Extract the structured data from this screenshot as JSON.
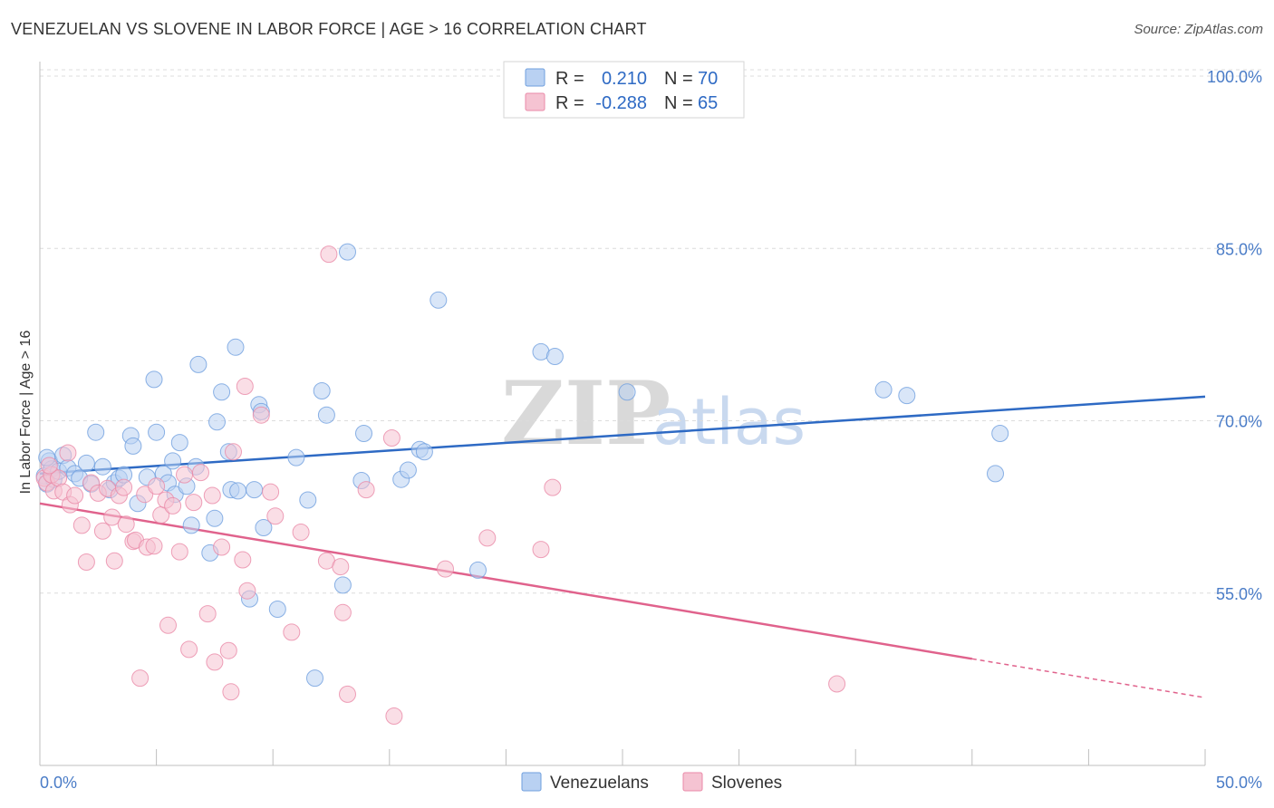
{
  "header": {
    "title": "VENEZUELAN VS SLOVENE IN LABOR FORCE | AGE > 16 CORRELATION CHART",
    "source": "Source: ZipAtlas.com"
  },
  "watermark": {
    "zip": "ZIP",
    "atlas": "atlas"
  },
  "colors": {
    "blue": "#6f9fde",
    "blue_fill": "#b9d1f2",
    "blue_line": "#2e6ac4",
    "pink": "#ea8aa8",
    "pink_fill": "#f5c3d2",
    "pink_line": "#e0628c"
  },
  "legend": {
    "row1": {
      "r_label": "R =",
      "r_value": "0.210",
      "n_label": "N =",
      "n_value": "70"
    },
    "row2": {
      "r_label": "R =",
      "r_value": "-0.288",
      "n_label": "N =",
      "n_value": "65"
    }
  },
  "bottom_legend": {
    "series1": "Venezuelans",
    "series2": "Slovenes"
  },
  "chart_data": {
    "type": "scatter",
    "title": "VENEZUELAN VS SLOVENE IN LABOR FORCE | AGE > 16 CORRELATION CHART",
    "xlabel": "",
    "ylabel": "In Labor Force | Age > 16",
    "xlim": [
      0,
      50
    ],
    "ylim": [
      40,
      101.5
    ],
    "x_tick_labels": [
      "0.0%",
      "50.0%"
    ],
    "y_ticks": [
      55,
      70,
      85,
      100
    ],
    "y_tick_labels": [
      "55.0%",
      "70.0%",
      "85.0%",
      "100.0%"
    ],
    "grid": true,
    "series": [
      {
        "name": "Venezuelans",
        "r": 0.21,
        "n": 70,
        "trend": {
          "x0": 0,
          "y0": 65.4,
          "x1": 50,
          "y1": 72.1,
          "dashed_from": null
        },
        "points": [
          [
            0.2,
            65.2
          ],
          [
            0.3,
            64.5
          ],
          [
            0.4,
            66.5
          ],
          [
            0.5,
            65.8
          ],
          [
            0.6,
            64.9
          ],
          [
            0.8,
            65.6
          ],
          [
            1.0,
            67.0
          ],
          [
            1.2,
            65.9
          ],
          [
            1.5,
            65.4
          ],
          [
            1.7,
            65.0
          ],
          [
            2.0,
            66.3
          ],
          [
            2.2,
            64.5
          ],
          [
            2.4,
            69.0
          ],
          [
            2.7,
            66.0
          ],
          [
            3.0,
            64.0
          ],
          [
            3.2,
            64.6
          ],
          [
            3.4,
            65.0
          ],
          [
            3.6,
            65.3
          ],
          [
            3.9,
            68.7
          ],
          [
            4.0,
            67.8
          ],
          [
            4.2,
            62.8
          ],
          [
            4.6,
            65.1
          ],
          [
            4.9,
            73.6
          ],
          [
            5.0,
            69.0
          ],
          [
            5.3,
            65.4
          ],
          [
            5.5,
            64.6
          ],
          [
            5.7,
            66.5
          ],
          [
            5.8,
            63.6
          ],
          [
            6.0,
            68.1
          ],
          [
            6.3,
            64.3
          ],
          [
            6.5,
            60.9
          ],
          [
            6.7,
            66.0
          ],
          [
            6.8,
            74.9
          ],
          [
            7.3,
            58.5
          ],
          [
            7.5,
            61.5
          ],
          [
            7.6,
            69.9
          ],
          [
            7.8,
            72.5
          ],
          [
            8.1,
            67.3
          ],
          [
            8.2,
            64.0
          ],
          [
            8.4,
            76.4
          ],
          [
            8.5,
            63.9
          ],
          [
            9.0,
            54.5
          ],
          [
            9.2,
            64.0
          ],
          [
            9.4,
            71.4
          ],
          [
            9.5,
            70.8
          ],
          [
            9.6,
            60.7
          ],
          [
            10.2,
            53.6
          ],
          [
            11.0,
            66.8
          ],
          [
            11.5,
            63.1
          ],
          [
            11.8,
            47.6
          ],
          [
            12.1,
            72.6
          ],
          [
            12.3,
            70.5
          ],
          [
            13.0,
            55.7
          ],
          [
            13.2,
            84.7
          ],
          [
            13.8,
            64.8
          ],
          [
            13.9,
            68.9
          ],
          [
            15.5,
            64.9
          ],
          [
            15.8,
            65.7
          ],
          [
            16.3,
            67.5
          ],
          [
            16.5,
            67.3
          ],
          [
            17.1,
            80.5
          ],
          [
            18.8,
            57.0
          ],
          [
            21.5,
            76.0
          ],
          [
            22.1,
            75.6
          ],
          [
            25.2,
            72.5
          ],
          [
            36.2,
            72.7
          ],
          [
            37.2,
            72.2
          ],
          [
            41.0,
            65.4
          ],
          [
            41.2,
            68.9
          ],
          [
            0.3,
            66.8
          ]
        ]
      },
      {
        "name": "Slovenes",
        "r": -0.288,
        "n": 65,
        "trend": {
          "x0": 0,
          "y0": 62.8,
          "x1": 50,
          "y1": 45.9,
          "dashed_from": 40.0
        },
        "points": [
          [
            0.2,
            65.0
          ],
          [
            0.3,
            64.6
          ],
          [
            0.5,
            65.3
          ],
          [
            0.6,
            63.9
          ],
          [
            0.8,
            65.0
          ],
          [
            1.0,
            63.8
          ],
          [
            1.2,
            67.2
          ],
          [
            1.3,
            62.7
          ],
          [
            1.5,
            63.5
          ],
          [
            1.8,
            60.9
          ],
          [
            2.0,
            57.7
          ],
          [
            2.2,
            64.6
          ],
          [
            2.5,
            63.7
          ],
          [
            2.7,
            60.4
          ],
          [
            2.9,
            64.1
          ],
          [
            3.1,
            61.6
          ],
          [
            3.2,
            57.8
          ],
          [
            3.4,
            63.5
          ],
          [
            3.6,
            64.2
          ],
          [
            3.7,
            61.0
          ],
          [
            4.0,
            59.5
          ],
          [
            4.1,
            59.6
          ],
          [
            4.3,
            47.6
          ],
          [
            4.5,
            63.6
          ],
          [
            4.6,
            59.0
          ],
          [
            4.9,
            59.1
          ],
          [
            5.0,
            64.3
          ],
          [
            5.2,
            61.8
          ],
          [
            5.4,
            63.1
          ],
          [
            5.5,
            52.2
          ],
          [
            5.7,
            62.6
          ],
          [
            6.0,
            58.6
          ],
          [
            6.2,
            65.3
          ],
          [
            6.4,
            50.1
          ],
          [
            6.6,
            62.9
          ],
          [
            6.9,
            65.5
          ],
          [
            7.2,
            53.2
          ],
          [
            7.4,
            63.5
          ],
          [
            7.5,
            49.0
          ],
          [
            7.8,
            59.0
          ],
          [
            8.1,
            50.0
          ],
          [
            8.2,
            46.4
          ],
          [
            8.3,
            67.3
          ],
          [
            8.7,
            57.9
          ],
          [
            8.8,
            73.0
          ],
          [
            8.9,
            55.2
          ],
          [
            9.5,
            70.5
          ],
          [
            9.9,
            63.8
          ],
          [
            10.1,
            61.7
          ],
          [
            10.8,
            51.6
          ],
          [
            11.2,
            60.3
          ],
          [
            12.3,
            57.8
          ],
          [
            12.4,
            84.5
          ],
          [
            12.9,
            57.3
          ],
          [
            13.0,
            53.3
          ],
          [
            13.2,
            46.2
          ],
          [
            14.0,
            64.0
          ],
          [
            15.1,
            68.5
          ],
          [
            15.2,
            44.3
          ],
          [
            17.4,
            57.1
          ],
          [
            19.2,
            59.8
          ],
          [
            21.5,
            58.8
          ],
          [
            22.0,
            64.2
          ],
          [
            34.2,
            47.1
          ],
          [
            0.4,
            66.1
          ]
        ]
      }
    ]
  }
}
